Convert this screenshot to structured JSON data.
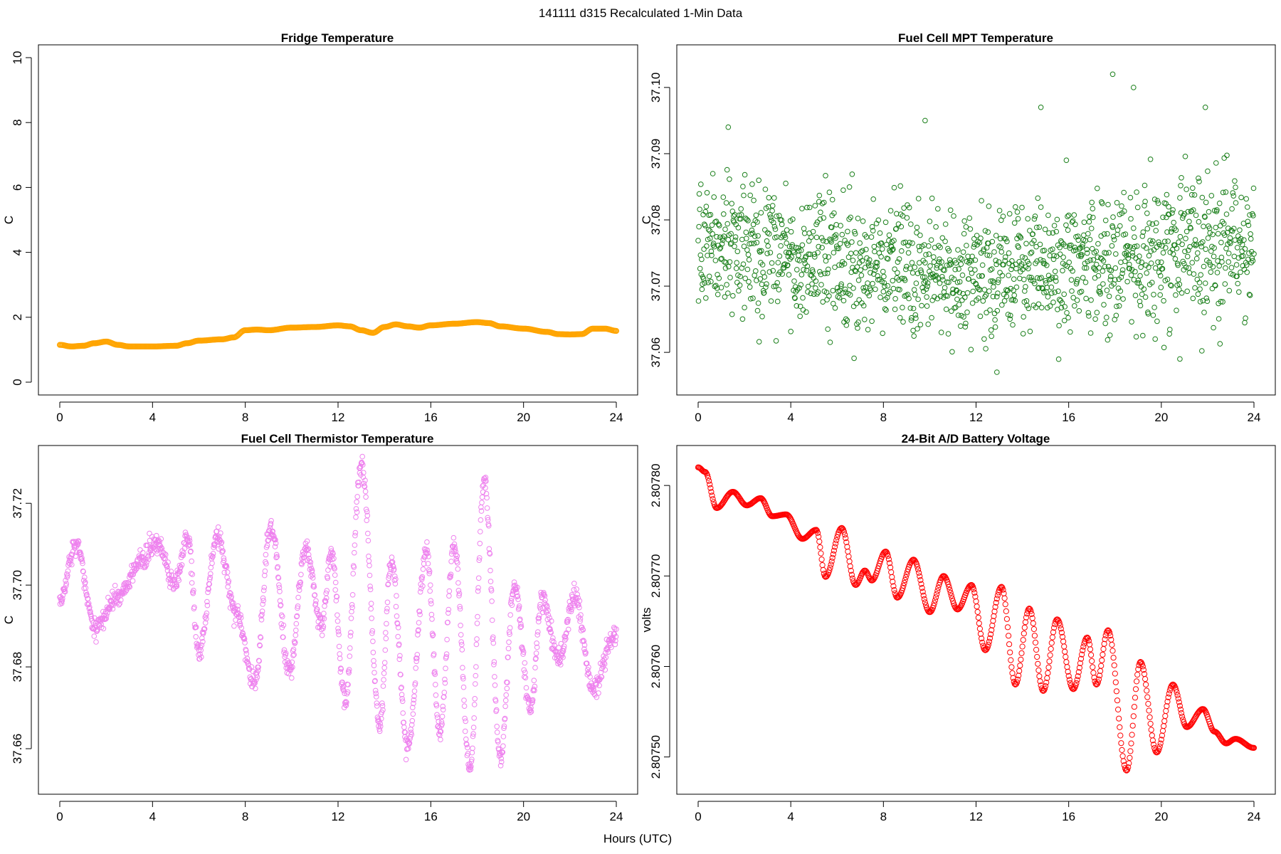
{
  "figure": {
    "title": "141111   d315   Recalculated 1-Min Data",
    "xlabel": "Hours (UTC)"
  },
  "chart_data": [
    {
      "type": "scatter",
      "title": "Fridge Temperature",
      "xlabel": "",
      "ylabel": "C",
      "color": "#ffa500",
      "xlim": [
        0,
        24
      ],
      "ylim": [
        0,
        10
      ],
      "xticks": [
        "0",
        "4",
        "8",
        "12",
        "16",
        "20",
        "24"
      ],
      "yticks": [
        "0",
        "2",
        "4",
        "6",
        "8",
        "10"
      ],
      "series": [
        {
          "x": [
            0,
            0.5,
            1,
            1.5,
            2,
            2.5,
            3,
            4,
            5,
            5.5,
            6,
            7,
            7.5,
            8,
            8.5,
            9,
            10,
            11,
            12,
            12.5,
            13,
            13.5,
            14,
            14.5,
            15,
            15.5,
            16,
            17,
            18,
            18.5,
            19,
            20,
            21,
            21.5,
            22,
            22.5,
            23,
            23.5,
            24
          ],
          "y": [
            1.15,
            1.1,
            1.12,
            1.2,
            1.25,
            1.15,
            1.1,
            1.1,
            1.12,
            1.2,
            1.28,
            1.32,
            1.38,
            1.6,
            1.62,
            1.6,
            1.68,
            1.7,
            1.75,
            1.72,
            1.6,
            1.52,
            1.7,
            1.78,
            1.72,
            1.68,
            1.75,
            1.8,
            1.85,
            1.82,
            1.72,
            1.65,
            1.55,
            1.48,
            1.47,
            1.48,
            1.65,
            1.65,
            1.58
          ]
        }
      ]
    },
    {
      "type": "scatter",
      "title": "Fuel Cell MPT Temperature",
      "xlabel": "",
      "ylabel": "C",
      "color": "#1a7f1a",
      "xlim": [
        0,
        24
      ],
      "ylim": [
        37.0555,
        37.1045
      ],
      "xticks": [
        "0",
        "4",
        "8",
        "12",
        "16",
        "20",
        "24"
      ],
      "yticks": [
        "37.06",
        "37.07",
        "37.08",
        "37.09",
        "37.10"
      ],
      "noise": {
        "mean": [
          [
            0,
            37.076
          ],
          [
            12,
            37.072
          ],
          [
            24,
            37.076
          ]
        ],
        "spread": 0.007,
        "extremes": [
          [
            1.3,
            37.094
          ],
          [
            9.8,
            37.095
          ],
          [
            12.9,
            37.057
          ],
          [
            14.8,
            37.097
          ],
          [
            17.9,
            37.102
          ],
          [
            18.8,
            37.1
          ],
          [
            21.9,
            37.097
          ],
          [
            20.8,
            37.059
          ]
        ]
      }
    },
    {
      "type": "scatter",
      "title": "Fuel Cell Thermistor Temperature",
      "xlabel": "",
      "ylabel": "C",
      "color": "#ee82ee",
      "xlim": [
        0,
        24
      ],
      "ylim": [
        37.652,
        37.731
      ],
      "xticks": [
        "0",
        "4",
        "8",
        "12",
        "16",
        "20",
        "24"
      ],
      "yticks": [
        "37.66",
        "37.68",
        "37.70",
        "37.72"
      ],
      "envelope": {
        "centre": [
          [
            0,
            37.696
          ],
          [
            0.7,
            37.71
          ],
          [
            1.5,
            37.69
          ],
          [
            2.5,
            37.697
          ],
          [
            3.5,
            37.706
          ],
          [
            4.2,
            37.71
          ],
          [
            5,
            37.7
          ],
          [
            5.5,
            37.712
          ],
          [
            6,
            37.684
          ],
          [
            6.8,
            37.712
          ],
          [
            7.6,
            37.693
          ],
          [
            8.4,
            37.676
          ],
          [
            9.1,
            37.714
          ],
          [
            9.9,
            37.679
          ],
          [
            10.6,
            37.709
          ],
          [
            11.3,
            37.69
          ],
          [
            11.7,
            37.708
          ],
          [
            12.3,
            37.672
          ],
          [
            13,
            37.73
          ],
          [
            13.8,
            37.666
          ],
          [
            14.3,
            37.706
          ],
          [
            15,
            37.66
          ],
          [
            15.8,
            37.708
          ],
          [
            16.4,
            37.664
          ],
          [
            17,
            37.71
          ],
          [
            17.7,
            37.655
          ],
          [
            18.3,
            37.726
          ],
          [
            19,
            37.658
          ],
          [
            19.6,
            37.7
          ],
          [
            20.3,
            37.67
          ],
          [
            20.8,
            37.697
          ],
          [
            21.5,
            37.682
          ],
          [
            22.2,
            37.697
          ],
          [
            23,
            37.675
          ],
          [
            24,
            37.688
          ]
        ]
      }
    },
    {
      "type": "scatter",
      "title": "24-Bit A/D Battery Voltage",
      "xlabel": "",
      "ylabel": "volts",
      "color": "#ff0000",
      "xlim": [
        0,
        24
      ],
      "ylim": [
        2.807473,
        2.80783
      ],
      "xticks": [
        "0",
        "4",
        "8",
        "12",
        "16",
        "20",
        "24"
      ],
      "yticks": [
        "2.80750",
        "2.80760",
        "2.80770",
        "2.80780"
      ],
      "series": [
        {
          "x": [
            0,
            0.3,
            0.8,
            1.5,
            2.1,
            2.7,
            3.2,
            3.8,
            4.5,
            5.1,
            5.5,
            6.2,
            6.8,
            7.2,
            7.5,
            8.1,
            8.6,
            9.3,
            10,
            10.6,
            11.2,
            11.8,
            12.4,
            13.1,
            13.7,
            14.3,
            14.9,
            15.5,
            16.2,
            16.8,
            17.2,
            17.7,
            18.5,
            19.1,
            19.8,
            20.5,
            21.1,
            21.8,
            22.3,
            22.8,
            23.2,
            24
          ],
          "y": [
            2.80782,
            2.807815,
            2.807775,
            2.807793,
            2.807778,
            2.807786,
            2.807766,
            2.807768,
            2.807741,
            2.807751,
            2.807699,
            2.807753,
            2.80769,
            2.807706,
            2.807695,
            2.807727,
            2.807676,
            2.807718,
            2.80766,
            2.8077,
            2.807663,
            2.80769,
            2.807618,
            2.807688,
            2.80758,
            2.807664,
            2.807573,
            2.807652,
            2.807575,
            2.807632,
            2.80758,
            2.80764,
            2.807485,
            2.807605,
            2.807505,
            2.80758,
            2.807533,
            2.807553,
            2.807528,
            2.807515,
            2.80752,
            2.80751
          ]
        }
      ]
    }
  ]
}
